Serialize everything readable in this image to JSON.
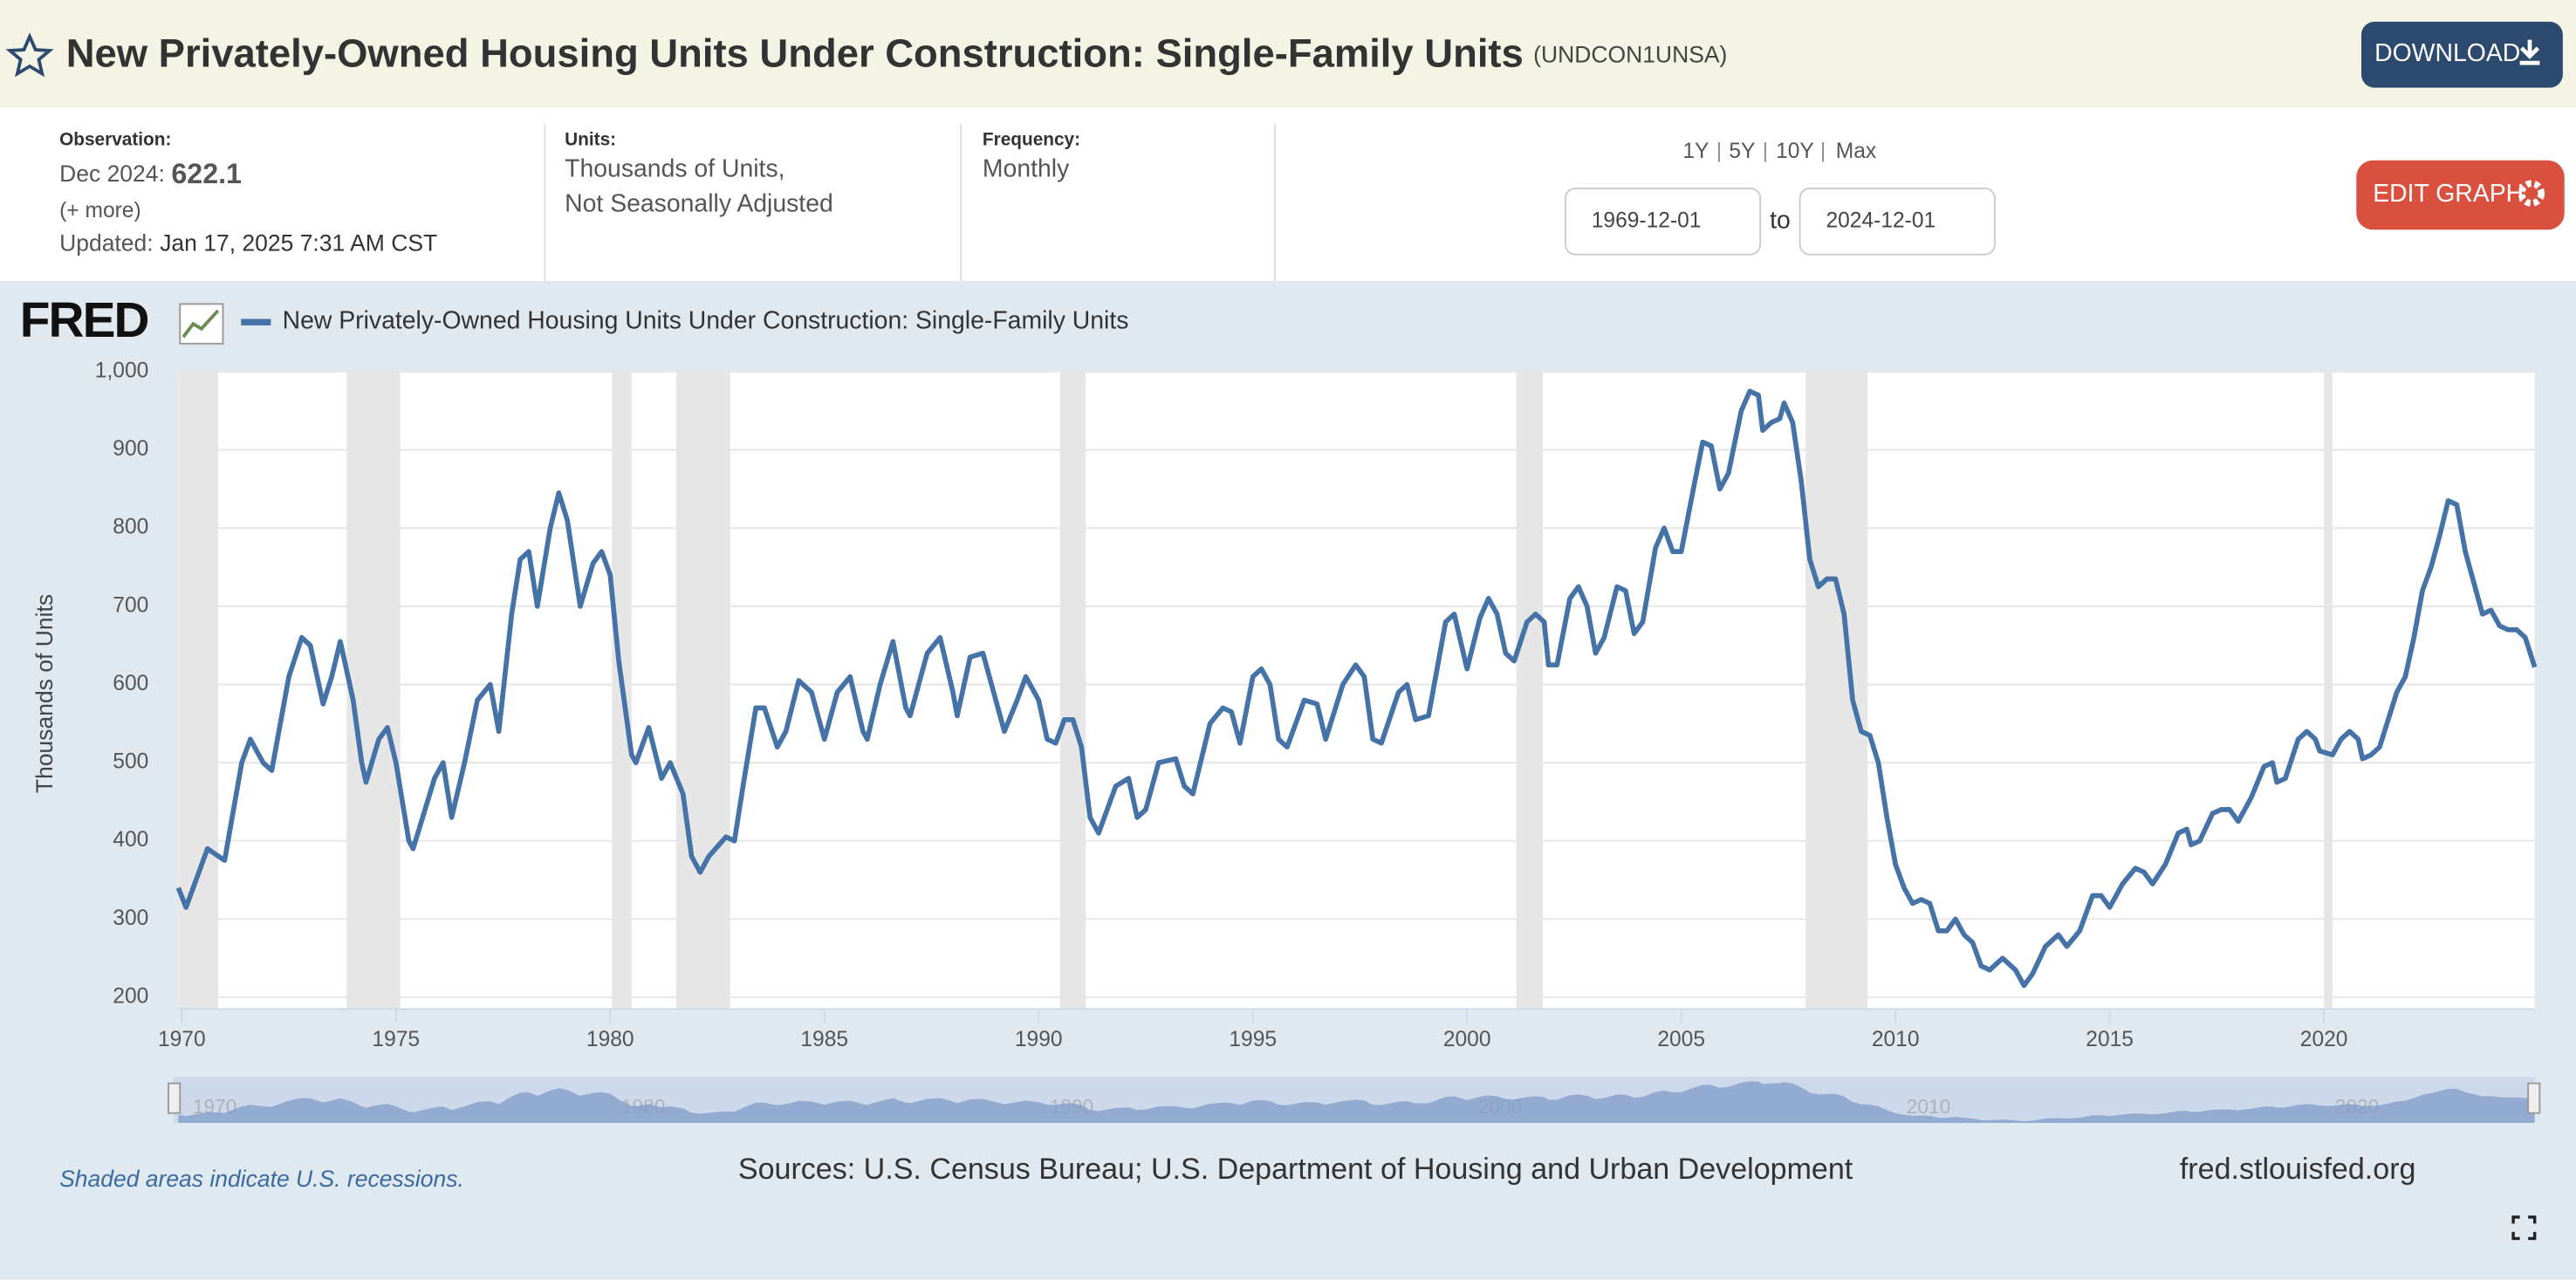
{
  "header": {
    "title": "New Privately-Owned Housing Units Under Construction: Single-Family Units",
    "series_id": "(UNDCON1UNSA)",
    "download": "DOWNLOAD"
  },
  "info": {
    "observation_label": "Observation:",
    "observation_date": "Dec 2024:",
    "observation_value": "622.1",
    "more": "(+ more)",
    "updated_label": "Updated:",
    "updated": "Jan 17, 2025 7:31 AM CST",
    "units_label": "Units:",
    "units": [
      "Thousands of Units,",
      "Not Seasonally Adjusted"
    ],
    "frequency_label": "Frequency:",
    "frequency": "Monthly",
    "ranges": [
      "1Y",
      "5Y",
      "10Y",
      "Max"
    ],
    "start_date": "1969-12-01",
    "to": "to",
    "end_date": "2024-12-01",
    "edit": "EDIT GRAPH"
  },
  "chart_data": {
    "type": "line",
    "logo": "FRED",
    "ylabel": "Thousands of Units",
    "series": [
      {
        "name": "New Privately-Owned Housing Units Under Construction: Single-Family Units",
        "color": "#4572a7",
        "values": [
          340,
          315,
          390,
          375,
          500,
          530,
          500,
          490,
          610,
          660,
          650,
          575,
          610,
          655,
          580,
          500,
          475,
          530,
          545,
          500,
          400,
          390,
          480,
          500,
          430,
          500,
          580,
          600,
          540,
          690,
          760,
          770,
          700,
          800,
          845,
          810,
          700,
          755,
          770,
          740,
          630,
          510,
          500,
          545,
          480,
          500,
          460,
          380,
          360,
          380,
          405,
          400,
          470,
          570,
          570,
          520,
          540,
          605,
          590,
          530,
          590,
          610,
          540,
          530,
          600,
          655,
          570,
          560,
          640,
          660,
          590,
          560,
          635,
          640,
          600,
          540,
          580,
          610,
          580,
          530,
          525,
          555,
          555,
          520,
          430,
          410,
          470,
          480,
          430,
          440,
          500,
          505,
          470,
          460,
          550,
          570,
          565,
          525,
          610,
          620,
          600,
          530,
          520,
          580,
          575,
          530,
          600,
          625,
          610,
          530,
          525,
          590,
          600,
          555,
          560,
          680,
          690,
          620,
          685,
          710,
          690,
          640,
          630,
          680,
          690,
          680,
          625,
          625,
          710,
          725,
          700,
          640,
          660,
          725,
          720,
          665,
          680,
          775,
          800,
          770,
          770,
          855,
          910,
          905,
          850,
          870,
          950,
          975,
          970,
          925,
          935,
          940,
          960,
          935,
          860,
          760,
          725,
          735,
          735,
          690,
          580,
          540,
          535,
          500,
          430,
          370,
          340,
          320,
          325,
          320,
          285,
          285,
          300,
          280,
          270,
          240,
          235,
          250,
          235,
          215,
          230,
          265,
          280,
          265,
          285,
          330,
          330,
          315,
          345,
          365,
          360,
          345,
          370,
          410,
          415,
          395,
          400,
          435,
          440,
          440,
          425,
          455,
          495,
          500,
          475,
          480,
          530,
          540,
          530,
          515,
          510,
          530,
          540,
          530,
          505,
          510,
          520,
          555,
          590,
          610,
          660,
          720,
          750,
          790,
          835,
          830,
          770,
          730,
          690,
          695,
          675,
          670,
          670,
          660,
          622.1
        ]
      }
    ],
    "x": [
      1969.92,
      1970.1,
      1970.6,
      1971.0,
      1971.4,
      1971.6,
      1971.9,
      1972.1,
      1972.5,
      1972.8,
      1973.0,
      1973.3,
      1973.5,
      1973.7,
      1974.0,
      1974.2,
      1974.3,
      1974.6,
      1974.8,
      1975.0,
      1975.3,
      1975.4,
      1975.9,
      1976.1,
      1976.3,
      1976.6,
      1976.9,
      1977.2,
      1977.4,
      1977.7,
      1977.9,
      1978.1,
      1978.3,
      1978.6,
      1978.8,
      1979.0,
      1979.3,
      1979.6,
      1979.8,
      1980.0,
      1980.2,
      1980.5,
      1980.6,
      1980.9,
      1981.2,
      1981.4,
      1981.7,
      1981.9,
      1982.1,
      1982.3,
      1982.7,
      1982.9,
      1983.1,
      1983.4,
      1983.6,
      1983.9,
      1984.1,
      1984.4,
      1984.7,
      1985.0,
      1985.3,
      1985.6,
      1985.9,
      1986.0,
      1986.3,
      1986.6,
      1986.9,
      1987.0,
      1987.4,
      1987.7,
      1988.0,
      1988.1,
      1988.4,
      1988.7,
      1988.9,
      1989.2,
      1989.5,
      1989.7,
      1990.0,
      1990.2,
      1990.4,
      1990.6,
      1990.8,
      1991.0,
      1991.2,
      1991.4,
      1991.8,
      1992.1,
      1992.3,
      1992.5,
      1992.8,
      1993.2,
      1993.4,
      1993.6,
      1994.0,
      1994.3,
      1994.5,
      1994.7,
      1995.0,
      1995.2,
      1995.4,
      1995.6,
      1995.8,
      1996.2,
      1996.5,
      1996.7,
      1997.1,
      1997.4,
      1997.6,
      1997.8,
      1998.0,
      1998.4,
      1998.6,
      1998.8,
      1999.1,
      1999.5,
      1999.7,
      2000.0,
      2000.3,
      2000.5,
      2000.7,
      2000.9,
      2001.1,
      2001.4,
      2001.6,
      2001.8,
      2001.9,
      2002.1,
      2002.4,
      2002.6,
      2002.8,
      2003.0,
      2003.2,
      2003.5,
      2003.7,
      2003.9,
      2004.1,
      2004.4,
      2004.6,
      2004.8,
      2005.0,
      2005.3,
      2005.5,
      2005.7,
      2005.9,
      2006.1,
      2006.4,
      2006.6,
      2006.8,
      2006.9,
      2007.1,
      2007.3,
      2007.4,
      2007.6,
      2007.8,
      2008.0,
      2008.2,
      2008.4,
      2008.6,
      2008.8,
      2009.0,
      2009.2,
      2009.4,
      2009.6,
      2009.8,
      2010.0,
      2010.2,
      2010.4,
      2010.6,
      2010.8,
      2011.0,
      2011.2,
      2011.4,
      2011.6,
      2011.8,
      2012.0,
      2012.2,
      2012.5,
      2012.8,
      2013.0,
      2013.2,
      2013.5,
      2013.8,
      2014.0,
      2014.3,
      2014.6,
      2014.8,
      2015.0,
      2015.3,
      2015.6,
      2015.8,
      2016.0,
      2016.3,
      2016.6,
      2016.8,
      2016.9,
      2017.1,
      2017.4,
      2017.6,
      2017.8,
      2018.0,
      2018.3,
      2018.6,
      2018.8,
      2018.9,
      2019.1,
      2019.4,
      2019.6,
      2019.8,
      2019.9,
      2020.2,
      2020.4,
      2020.6,
      2020.8,
      2020.9,
      2021.1,
      2021.3,
      2021.5,
      2021.7,
      2021.9,
      2022.1,
      2022.3,
      2022.5,
      2022.7,
      2022.9,
      2023.1,
      2023.3,
      2023.5,
      2023.7,
      2023.9,
      2024.1,
      2024.3,
      2024.5,
      2024.7,
      2024.92
    ],
    "xlim": [
      1969.92,
      2024.92
    ],
    "xticks": [
      1970,
      1975,
      1980,
      1985,
      1990,
      1995,
      2000,
      2005,
      2010,
      2015,
      2020
    ],
    "ylim": [
      185,
      1000
    ],
    "yticks": [
      200,
      300,
      400,
      500,
      600,
      700,
      800,
      900,
      {
        "value": 1000,
        "label": "1,000"
      }
    ],
    "grid": true,
    "recessions": [
      [
        1969.92,
        1970.85
      ],
      [
        1973.85,
        1975.1
      ],
      [
        1980.04,
        1980.5
      ],
      [
        1981.54,
        1982.8
      ],
      [
        1990.5,
        1991.1
      ],
      [
        2001.15,
        2001.77
      ],
      [
        2007.9,
        2009.35
      ],
      [
        2020.0,
        2020.2
      ]
    ],
    "recession_color": "#e6e6e6",
    "note": "Shaded areas indicate U.S. recessions.",
    "source": "Sources: U.S. Census Bureau; U.S. Department of Housing and Urban Development",
    "site": "fred.stlouisfed.org"
  }
}
